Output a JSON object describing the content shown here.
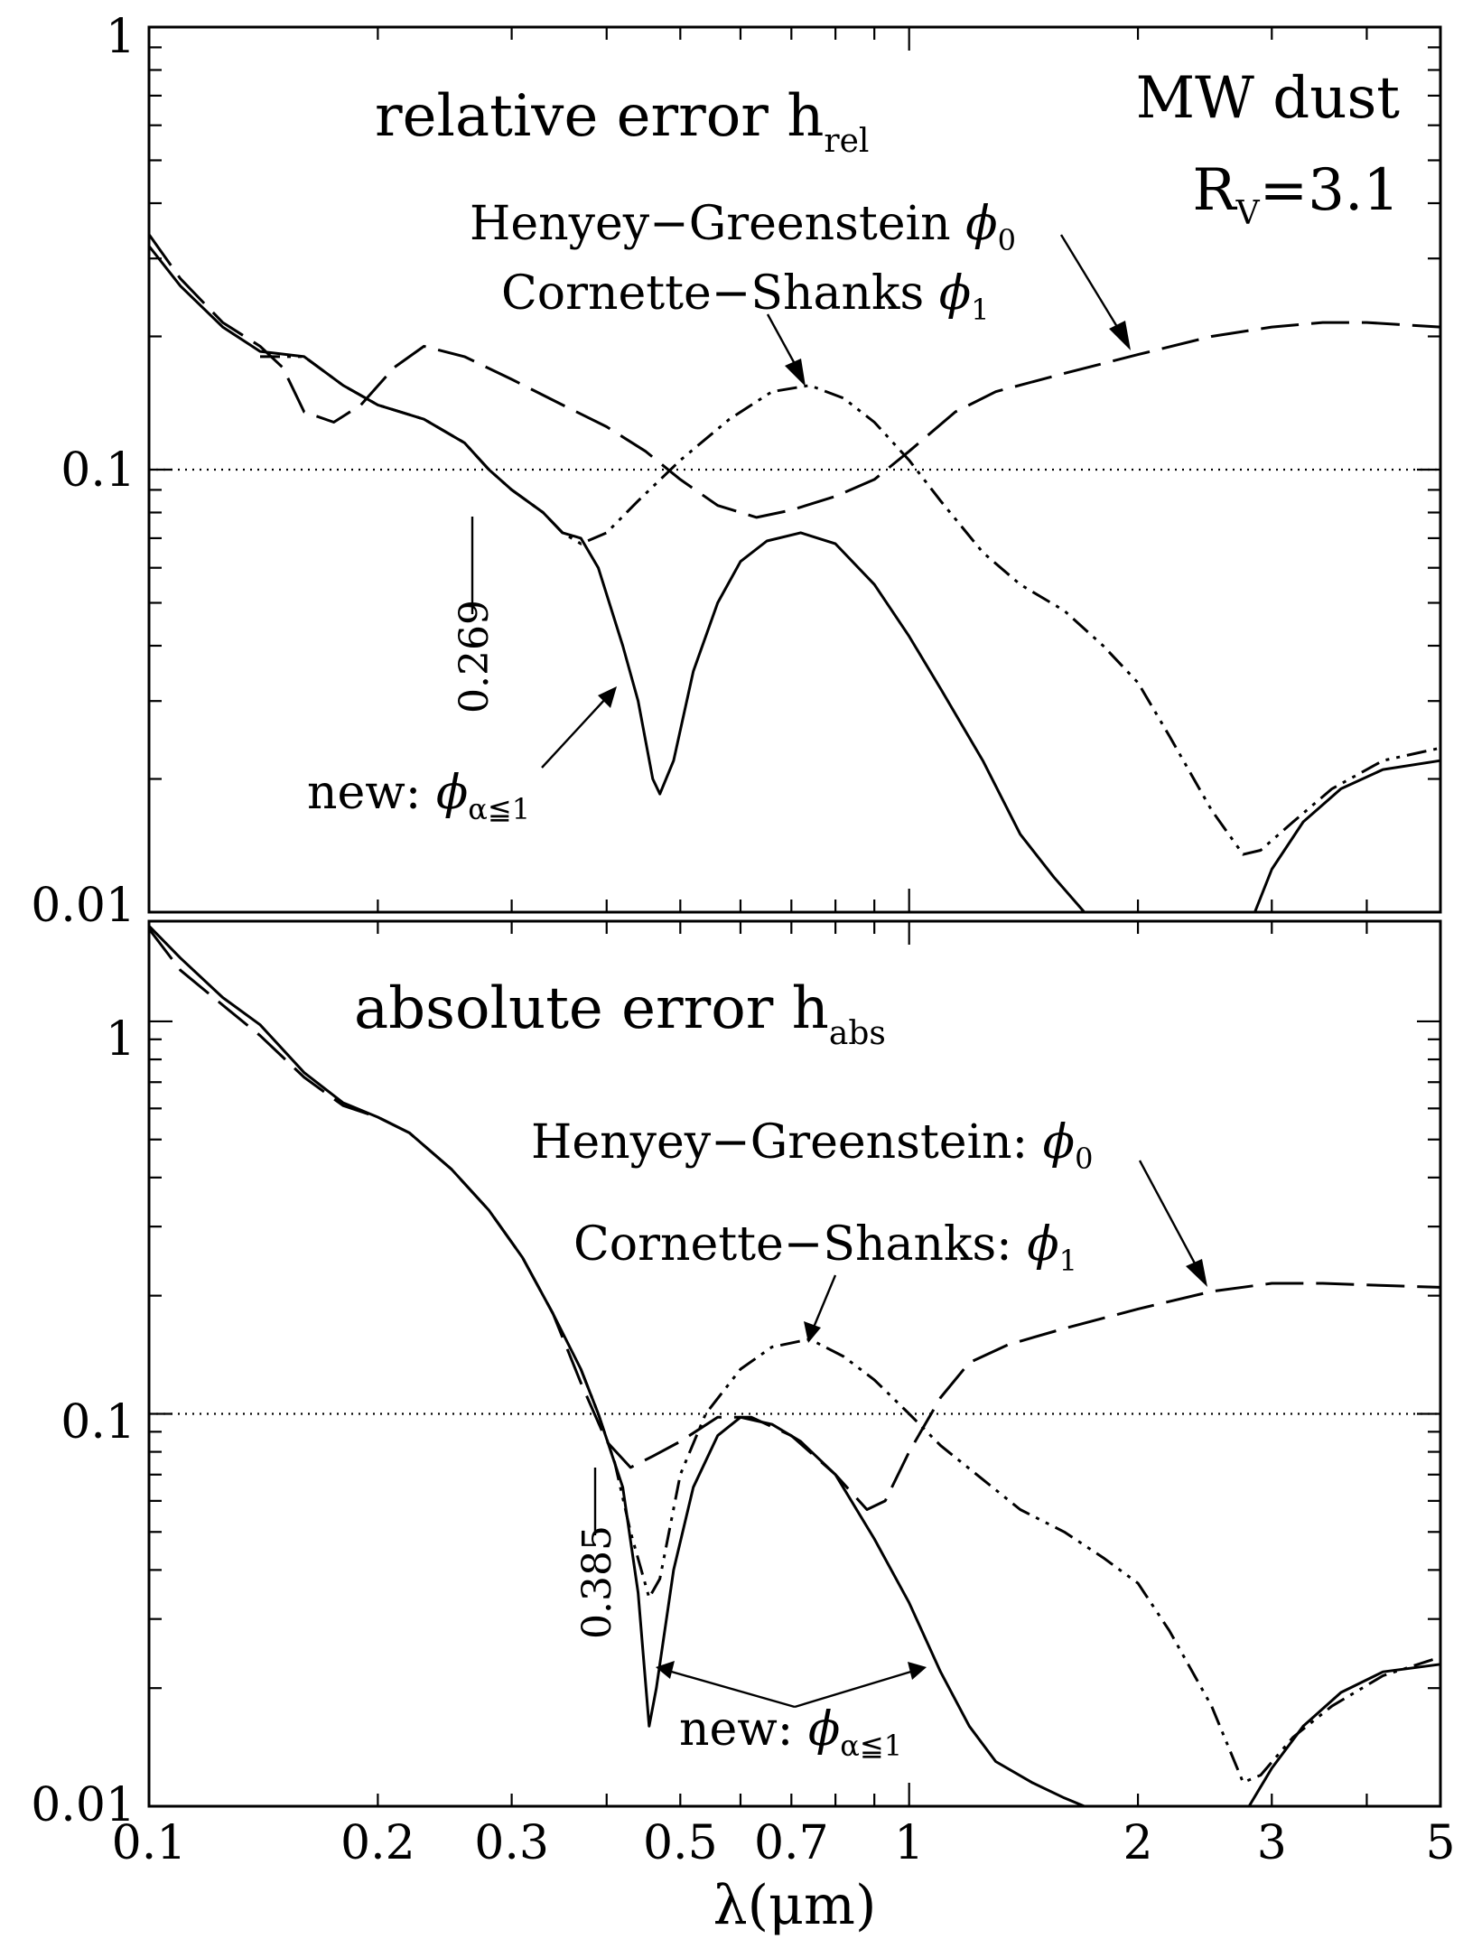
{
  "chart_data": [
    {
      "type": "line",
      "panel": "top",
      "xscale": "log",
      "yscale": "log",
      "xlim": [
        0.1,
        5
      ],
      "ylim": [
        0.01,
        1
      ],
      "ytick_labels": [
        "1",
        "0.1",
        "0.01"
      ],
      "ytick_values": [
        1,
        0.1,
        0.01
      ],
      "title_main": "relative error h",
      "title_sub": "rel",
      "corner_text": "MW dust",
      "rv_main": "R",
      "rv_sub": "V",
      "rv_value": "=3.1",
      "vline_label": "0.269",
      "reference_line": 0.1,
      "labels": {
        "hg_text": "Henyey−Greenstein ",
        "hg_symbol": "ϕ",
        "hg_sub": "0",
        "cs_text": "Cornette−Shanks ",
        "cs_symbol": "ϕ",
        "cs_sub": "1",
        "new_text": "new: ",
        "new_symbol": "ϕ",
        "new_sub": "α≦1"
      },
      "series": [
        {
          "style": "solid",
          "points": [
            [
              0.1,
              0.32
            ],
            [
              0.11,
              0.26
            ],
            [
              0.125,
              0.21
            ],
            [
              0.14,
              0.185
            ],
            [
              0.16,
              0.18
            ],
            [
              0.18,
              0.155
            ],
            [
              0.2,
              0.14
            ],
            [
              0.23,
              0.13
            ],
            [
              0.26,
              0.115
            ],
            [
              0.28,
              0.1
            ],
            [
              0.3,
              0.09
            ],
            [
              0.33,
              0.08
            ],
            [
              0.35,
              0.072
            ],
            [
              0.37,
              0.07
            ],
            [
              0.39,
              0.06
            ],
            [
              0.42,
              0.04
            ],
            [
              0.44,
              0.03
            ],
            [
              0.46,
              0.02
            ],
            [
              0.47,
              0.0185
            ],
            [
              0.49,
              0.022
            ],
            [
              0.52,
              0.035
            ],
            [
              0.56,
              0.05
            ],
            [
              0.6,
              0.062
            ],
            [
              0.65,
              0.069
            ],
            [
              0.72,
              0.072
            ],
            [
              0.8,
              0.068
            ],
            [
              0.9,
              0.055
            ],
            [
              1.0,
              0.042
            ],
            [
              1.1,
              0.032
            ],
            [
              1.25,
              0.022
            ],
            [
              1.4,
              0.015
            ],
            [
              1.55,
              0.012
            ],
            [
              1.7,
              0.01
            ]
          ]
        },
        {
          "style": "dash-dot-dot",
          "points": [
            [
              0.14,
              0.18
            ],
            [
              0.16,
              0.18
            ],
            [
              0.18,
              0.155
            ],
            [
              0.2,
              0.14
            ],
            [
              0.23,
              0.13
            ],
            [
              0.26,
              0.115
            ],
            [
              0.28,
              0.1
            ],
            [
              0.3,
              0.09
            ],
            [
              0.33,
              0.08
            ],
            [
              0.35,
              0.072
            ],
            [
              0.37,
              0.068
            ],
            [
              0.4,
              0.072
            ],
            [
              0.44,
              0.085
            ],
            [
              0.5,
              0.105
            ],
            [
              0.58,
              0.13
            ],
            [
              0.66,
              0.15
            ],
            [
              0.74,
              0.155
            ],
            [
              0.82,
              0.145
            ],
            [
              0.9,
              0.128
            ],
            [
              1.0,
              0.105
            ],
            [
              1.1,
              0.085
            ],
            [
              1.25,
              0.065
            ],
            [
              1.4,
              0.055
            ],
            [
              1.6,
              0.048
            ],
            [
              1.8,
              0.04
            ],
            [
              2.0,
              0.033
            ],
            [
              2.2,
              0.025
            ],
            [
              2.5,
              0.017
            ],
            [
              2.75,
              0.0135
            ],
            [
              2.9,
              0.0138
            ],
            [
              3.2,
              0.016
            ],
            [
              3.6,
              0.019
            ],
            [
              4.2,
              0.022
            ],
            [
              5.0,
              0.0235
            ]
          ]
        },
        {
          "style": "long-dash",
          "points": [
            [
              0.1,
              0.34
            ],
            [
              0.11,
              0.27
            ],
            [
              0.125,
              0.215
            ],
            [
              0.14,
              0.19
            ],
            [
              0.15,
              0.17
            ],
            [
              0.16,
              0.135
            ],
            [
              0.175,
              0.128
            ],
            [
              0.19,
              0.14
            ],
            [
              0.21,
              0.17
            ],
            [
              0.23,
              0.19
            ],
            [
              0.26,
              0.18
            ],
            [
              0.3,
              0.16
            ],
            [
              0.35,
              0.14
            ],
            [
              0.4,
              0.125
            ],
            [
              0.45,
              0.11
            ],
            [
              0.5,
              0.095
            ],
            [
              0.56,
              0.083
            ],
            [
              0.63,
              0.078
            ],
            [
              0.7,
              0.081
            ],
            [
              0.8,
              0.087
            ],
            [
              0.9,
              0.095
            ],
            [
              1.0,
              0.11
            ],
            [
              1.15,
              0.135
            ],
            [
              1.3,
              0.15
            ],
            [
              1.6,
              0.165
            ],
            [
              2.0,
              0.182
            ],
            [
              2.5,
              0.2
            ],
            [
              3.0,
              0.21
            ],
            [
              3.5,
              0.215
            ],
            [
              4.0,
              0.215
            ],
            [
              5.0,
              0.21
            ]
          ]
        },
        {
          "style": "solid",
          "points": [
            [
              2.85,
              0.01
            ],
            [
              3.0,
              0.0125
            ],
            [
              3.3,
              0.016
            ],
            [
              3.7,
              0.019
            ],
            [
              4.2,
              0.021
            ],
            [
              5.0,
              0.022
            ]
          ]
        }
      ]
    },
    {
      "type": "line",
      "panel": "bottom",
      "xscale": "log",
      "yscale": "log",
      "xlim": [
        0.1,
        5
      ],
      "ylim": [
        0.01,
        1.8
      ],
      "xlabel": "λ(μm)",
      "xtick_labels": [
        "0.1",
        "0.2",
        "0.3",
        "0.5",
        "0.7",
        "1",
        "2",
        "3",
        "5"
      ],
      "xtick_values": [
        0.1,
        0.2,
        0.3,
        0.5,
        0.7,
        1,
        2,
        3,
        5
      ],
      "ytick_labels": [
        "1",
        "0.1",
        "0.01"
      ],
      "ytick_values": [
        1,
        0.1,
        0.01
      ],
      "title_main": "absolute error h",
      "title_sub": "abs",
      "vline_label": "0.385",
      "reference_line": 0.1,
      "labels": {
        "hg_text": "Henyey−Greenstein: ",
        "hg_symbol": "ϕ",
        "hg_sub": "0",
        "cs_text": "Cornette−Shanks: ",
        "cs_symbol": "ϕ",
        "cs_sub": "1",
        "new_text": "new: ",
        "new_symbol": "ϕ",
        "new_sub": "α≦1"
      },
      "series": [
        {
          "style": "solid",
          "points": [
            [
              0.1,
              1.75
            ],
            [
              0.11,
              1.45
            ],
            [
              0.125,
              1.15
            ],
            [
              0.14,
              0.98
            ],
            [
              0.16,
              0.74
            ],
            [
              0.18,
              0.62
            ],
            [
              0.2,
              0.57
            ],
            [
              0.22,
              0.52
            ],
            [
              0.25,
              0.42
            ],
            [
              0.28,
              0.33
            ],
            [
              0.31,
              0.25
            ],
            [
              0.34,
              0.18
            ],
            [
              0.37,
              0.13
            ],
            [
              0.39,
              0.1
            ],
            [
              0.42,
              0.065
            ],
            [
              0.44,
              0.035
            ],
            [
              0.455,
              0.016
            ],
            [
              0.465,
              0.02
            ],
            [
              0.49,
              0.04
            ],
            [
              0.52,
              0.065
            ],
            [
              0.56,
              0.088
            ],
            [
              0.6,
              0.098
            ],
            [
              0.66,
              0.094
            ],
            [
              0.72,
              0.085
            ],
            [
              0.8,
              0.07
            ],
            [
              0.9,
              0.048
            ],
            [
              1.0,
              0.033
            ],
            [
              1.1,
              0.022
            ],
            [
              1.2,
              0.016
            ],
            [
              1.3,
              0.013
            ],
            [
              1.45,
              0.0115
            ],
            [
              1.6,
              0.0105
            ],
            [
              1.7,
              0.01
            ]
          ]
        },
        {
          "style": "dash-dot-dot",
          "points": [
            [
              0.37,
              0.13
            ],
            [
              0.39,
              0.1
            ],
            [
              0.41,
              0.075
            ],
            [
              0.43,
              0.05
            ],
            [
              0.455,
              0.034
            ],
            [
              0.47,
              0.038
            ],
            [
              0.5,
              0.07
            ],
            [
              0.54,
              0.1
            ],
            [
              0.6,
              0.13
            ],
            [
              0.66,
              0.148
            ],
            [
              0.74,
              0.155
            ],
            [
              0.82,
              0.14
            ],
            [
              0.9,
              0.122
            ],
            [
              1.0,
              0.1
            ],
            [
              1.1,
              0.083
            ],
            [
              1.25,
              0.068
            ],
            [
              1.4,
              0.057
            ],
            [
              1.6,
              0.05
            ],
            [
              1.8,
              0.043
            ],
            [
              2.0,
              0.037
            ],
            [
              2.2,
              0.028
            ],
            [
              2.5,
              0.018
            ],
            [
              2.75,
              0.0115
            ],
            [
              2.9,
              0.012
            ],
            [
              3.2,
              0.015
            ],
            [
              3.6,
              0.018
            ],
            [
              4.2,
              0.0215
            ],
            [
              5.0,
              0.024
            ]
          ]
        },
        {
          "style": "long-dash",
          "points": [
            [
              0.1,
              1.72
            ],
            [
              0.11,
              1.35
            ],
            [
              0.125,
              1.1
            ],
            [
              0.14,
              0.92
            ],
            [
              0.16,
              0.72
            ],
            [
              0.18,
              0.61
            ],
            [
              0.2,
              0.57
            ],
            [
              0.22,
              0.52
            ],
            [
              0.25,
              0.42
            ],
            [
              0.28,
              0.33
            ],
            [
              0.31,
              0.25
            ],
            [
              0.34,
              0.18
            ],
            [
              0.37,
              0.12
            ],
            [
              0.4,
              0.085
            ],
            [
              0.43,
              0.073
            ],
            [
              0.46,
              0.078
            ],
            [
              0.5,
              0.085
            ],
            [
              0.56,
              0.098
            ],
            [
              0.62,
              0.098
            ],
            [
              0.7,
              0.088
            ],
            [
              0.8,
              0.07
            ],
            [
              0.88,
              0.057
            ],
            [
              0.93,
              0.06
            ],
            [
              1.0,
              0.08
            ],
            [
              1.1,
              0.11
            ],
            [
              1.2,
              0.135
            ],
            [
              1.35,
              0.15
            ],
            [
              1.6,
              0.165
            ],
            [
              2.0,
              0.185
            ],
            [
              2.5,
              0.205
            ],
            [
              3.0,
              0.215
            ],
            [
              3.5,
              0.215
            ],
            [
              4.0,
              0.213
            ],
            [
              5.0,
              0.21
            ]
          ]
        },
        {
          "style": "solid",
          "points": [
            [
              2.8,
              0.01
            ],
            [
              3.0,
              0.0125
            ],
            [
              3.3,
              0.016
            ],
            [
              3.7,
              0.0195
            ],
            [
              4.2,
              0.022
            ],
            [
              5.0,
              0.023
            ]
          ]
        }
      ]
    }
  ]
}
